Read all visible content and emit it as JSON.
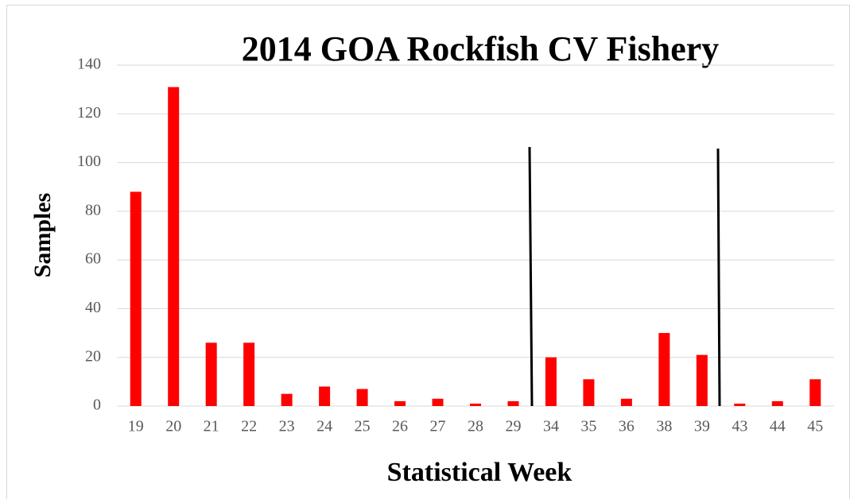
{
  "chart_data": {
    "type": "bar",
    "title": "2014 GOA Rockfish CV Fishery",
    "x_label": "Statistical Week",
    "y_label": "Samples",
    "categories": [
      "19",
      "20",
      "21",
      "22",
      "23",
      "24",
      "25",
      "26",
      "27",
      "28",
      "29",
      "34",
      "35",
      "36",
      "38",
      "39",
      "43",
      "44",
      "45"
    ],
    "values": [
      88,
      131,
      26,
      26,
      5,
      8,
      7,
      2,
      3,
      1,
      2,
      20,
      11,
      3,
      30,
      21,
      1,
      2,
      11
    ],
    "color": "#ff0000",
    "ylim": [
      0,
      140
    ],
    "yticks": [
      0,
      20,
      40,
      60,
      80,
      100,
      120,
      140
    ],
    "grid": true
  }
}
